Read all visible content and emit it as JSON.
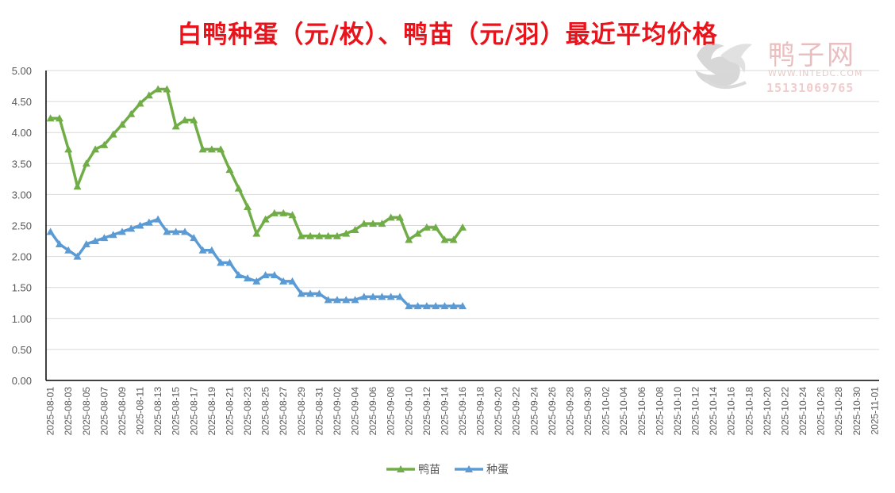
{
  "title": "白鸭种蛋（元/枚）、鸭苗（元/羽）最近平均价格",
  "watermark": {
    "name": "鸭子网",
    "site": "WWW.INTEDC.COM",
    "phone": "15131069765"
  },
  "colors": {
    "title": "#e8131b",
    "duckling": "#70ad47",
    "egg": "#5b9bd5",
    "grid": "#d9d9d9",
    "axis": "#000000"
  },
  "chart_data": {
    "type": "line",
    "title": "白鸭种蛋（元/枚）、鸭苗（元/羽）最近平均价格",
    "xlabel": "",
    "ylabel": "",
    "ylim": [
      0,
      5
    ],
    "y_ticks": [
      "0.00",
      "0.50",
      "1.00",
      "1.50",
      "2.00",
      "2.50",
      "3.00",
      "3.50",
      "4.00",
      "4.50",
      "5.00"
    ],
    "grid": true,
    "legend_position": "bottom",
    "x_start": "2025-08-01",
    "x_end": "2025-11-01",
    "tick_labels": [
      "2025-08-01",
      "2025-08-03",
      "2025-08-05",
      "2025-08-07",
      "2025-08-09",
      "2025-08-11",
      "2025-08-13",
      "2025-08-15",
      "2025-08-17",
      "2025-08-19",
      "2025-08-21",
      "2025-08-23",
      "2025-08-25",
      "2025-08-27",
      "2025-08-29",
      "2025-08-31",
      "2025-09-02",
      "2025-09-04",
      "2025-09-06",
      "2025-09-08",
      "2025-09-10",
      "2025-09-12",
      "2025-09-14",
      "2025-09-16",
      "2025-09-18",
      "2025-09-20",
      "2025-09-22",
      "2025-09-24",
      "2025-09-26",
      "2025-09-28",
      "2025-09-30",
      "2025-10-02",
      "2025-10-04",
      "2025-10-06",
      "2025-10-08",
      "2025-10-10",
      "2025-10-12",
      "2025-10-14",
      "2025-10-16",
      "2025-10-18",
      "2025-10-20",
      "2025-10-22",
      "2025-10-24",
      "2025-10-26",
      "2025-10-28",
      "2025-10-30",
      "2025-11-01"
    ],
    "x": [
      "2025-08-01",
      "2025-08-02",
      "2025-08-03",
      "2025-08-04",
      "2025-08-05",
      "2025-08-06",
      "2025-08-07",
      "2025-08-08",
      "2025-08-09",
      "2025-08-10",
      "2025-08-11",
      "2025-08-12",
      "2025-08-13",
      "2025-08-14",
      "2025-08-15",
      "2025-08-16",
      "2025-08-17",
      "2025-08-18",
      "2025-08-19",
      "2025-08-20",
      "2025-08-21",
      "2025-08-22",
      "2025-08-23",
      "2025-08-24",
      "2025-08-25",
      "2025-08-26",
      "2025-08-27",
      "2025-08-28",
      "2025-08-29",
      "2025-08-30",
      "2025-08-31",
      "2025-09-01",
      "2025-09-02",
      "2025-09-03",
      "2025-09-04",
      "2025-09-05",
      "2025-09-06",
      "2025-09-07",
      "2025-09-08",
      "2025-09-09",
      "2025-09-10",
      "2025-09-11",
      "2025-09-12",
      "2025-09-13",
      "2025-09-14",
      "2025-09-15",
      "2025-09-16"
    ],
    "series": [
      {
        "name": "鸭苗",
        "color": "#70ad47",
        "values": [
          4.23,
          4.23,
          3.73,
          3.13,
          3.5,
          3.73,
          3.8,
          3.97,
          4.13,
          4.3,
          4.47,
          4.6,
          4.7,
          4.7,
          4.1,
          4.2,
          4.2,
          3.73,
          3.73,
          3.73,
          3.4,
          3.1,
          2.8,
          2.37,
          2.6,
          2.7,
          2.7,
          2.67,
          2.33,
          2.33,
          2.33,
          2.33,
          2.33,
          2.37,
          2.43,
          2.53,
          2.53,
          2.53,
          2.63,
          2.63,
          2.27,
          2.37,
          2.47,
          2.47,
          2.27,
          2.27,
          2.47
        ]
      },
      {
        "name": "种蛋",
        "color": "#5b9bd5",
        "values": [
          2.4,
          2.2,
          2.1,
          2.0,
          2.2,
          2.25,
          2.3,
          2.35,
          2.4,
          2.45,
          2.5,
          2.55,
          2.6,
          2.4,
          2.4,
          2.4,
          2.3,
          2.1,
          2.1,
          1.9,
          1.9,
          1.7,
          1.65,
          1.6,
          1.7,
          1.7,
          1.6,
          1.6,
          1.4,
          1.4,
          1.4,
          1.3,
          1.3,
          1.3,
          1.3,
          1.35,
          1.35,
          1.35,
          1.35,
          1.35,
          1.2,
          1.2,
          1.2,
          1.2,
          1.2,
          1.2,
          1.2
        ]
      }
    ]
  }
}
